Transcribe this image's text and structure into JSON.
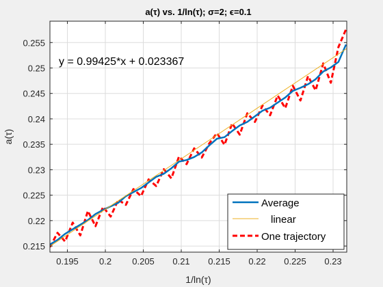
{
  "chart_data": {
    "type": "line",
    "title": "a(τ) vs. 1/ln(τ); σ=2; ϵ=0.1",
    "xlabel": "1/ln(τ)",
    "ylabel": "a(τ)",
    "xlim": [
      0.1927,
      0.2318
    ],
    "ylim": [
      0.2138,
      0.2592
    ],
    "xticks": [
      0.195,
      0.2,
      0.205,
      0.21,
      0.215,
      0.22,
      0.225,
      0.23
    ],
    "xtick_labels": [
      "0.195",
      "0.2",
      "0.205",
      "0.21",
      "0.215",
      "0.22",
      "0.225",
      "0.23"
    ],
    "yticks": [
      0.215,
      0.22,
      0.225,
      0.23,
      0.235,
      0.24,
      0.245,
      0.25,
      0.255
    ],
    "ytick_labels": [
      "0.215",
      "0.22",
      "0.225",
      "0.23",
      "0.235",
      "0.24",
      "0.245",
      "0.25",
      "0.255"
    ],
    "grid": true,
    "legend_position": "bottom-right",
    "annotation": "y = 0.99425*x + 0.023367",
    "fit": {
      "slope": 0.99425,
      "intercept": 0.023367
    },
    "series": [
      {
        "name": "Average",
        "color": "#0072bd",
        "style": "solid",
        "x": [
          0.1927,
          0.1937,
          0.1947,
          0.1957,
          0.1967,
          0.1977,
          0.1987,
          0.1997,
          0.2007,
          0.2017,
          0.2027,
          0.2037,
          0.2047,
          0.2057,
          0.2067,
          0.2077,
          0.2087,
          0.2097,
          0.2107,
          0.2117,
          0.2127,
          0.2137,
          0.2147,
          0.2157,
          0.2167,
          0.2177,
          0.2187,
          0.2197,
          0.2207,
          0.2217,
          0.2227,
          0.2237,
          0.2247,
          0.2257,
          0.2267,
          0.2277,
          0.2287,
          0.2297,
          0.2307,
          0.2317
        ],
        "y": [
          0.2153,
          0.2162,
          0.2174,
          0.2183,
          0.2192,
          0.2201,
          0.2213,
          0.2221,
          0.2228,
          0.2235,
          0.2248,
          0.2256,
          0.2264,
          0.2275,
          0.2286,
          0.2292,
          0.2303,
          0.2316,
          0.2319,
          0.2325,
          0.2334,
          0.2348,
          0.2361,
          0.2364,
          0.2376,
          0.2387,
          0.2394,
          0.2405,
          0.2416,
          0.2422,
          0.2432,
          0.2442,
          0.2455,
          0.2461,
          0.2468,
          0.2478,
          0.2493,
          0.2501,
          0.2512,
          0.2546
        ]
      },
      {
        "name": "linear",
        "color": "#edb120",
        "style": "solid",
        "x": [
          0.1927,
          0.2318
        ],
        "y": [
          0.21496,
          0.25383
        ]
      },
      {
        "name": "One trajectory",
        "color": "#ff0000",
        "style": "dashed",
        "x": [
          0.1927,
          0.1937,
          0.1947,
          0.1957,
          0.1967,
          0.1977,
          0.1987,
          0.1997,
          0.2007,
          0.2017,
          0.2027,
          0.2037,
          0.2047,
          0.2057,
          0.2067,
          0.2077,
          0.2087,
          0.2097,
          0.2107,
          0.2117,
          0.2127,
          0.2137,
          0.2147,
          0.2157,
          0.2167,
          0.2177,
          0.2187,
          0.2197,
          0.2207,
          0.2217,
          0.2227,
          0.2237,
          0.2247,
          0.2257,
          0.2267,
          0.2277,
          0.2287,
          0.2297,
          0.2307,
          0.2317
        ],
        "y": [
          0.2148,
          0.2176,
          0.2159,
          0.2196,
          0.2171,
          0.2219,
          0.2189,
          0.2227,
          0.2208,
          0.2241,
          0.2231,
          0.2262,
          0.2248,
          0.2281,
          0.2268,
          0.2301,
          0.2283,
          0.2326,
          0.2311,
          0.2342,
          0.2324,
          0.2352,
          0.2372,
          0.2349,
          0.2391,
          0.2369,
          0.2411,
          0.2394,
          0.2426,
          0.2407,
          0.2446,
          0.2421,
          0.2465,
          0.2436,
          0.2484,
          0.2456,
          0.2509,
          0.2471,
          0.2541,
          0.2576
        ]
      }
    ]
  }
}
